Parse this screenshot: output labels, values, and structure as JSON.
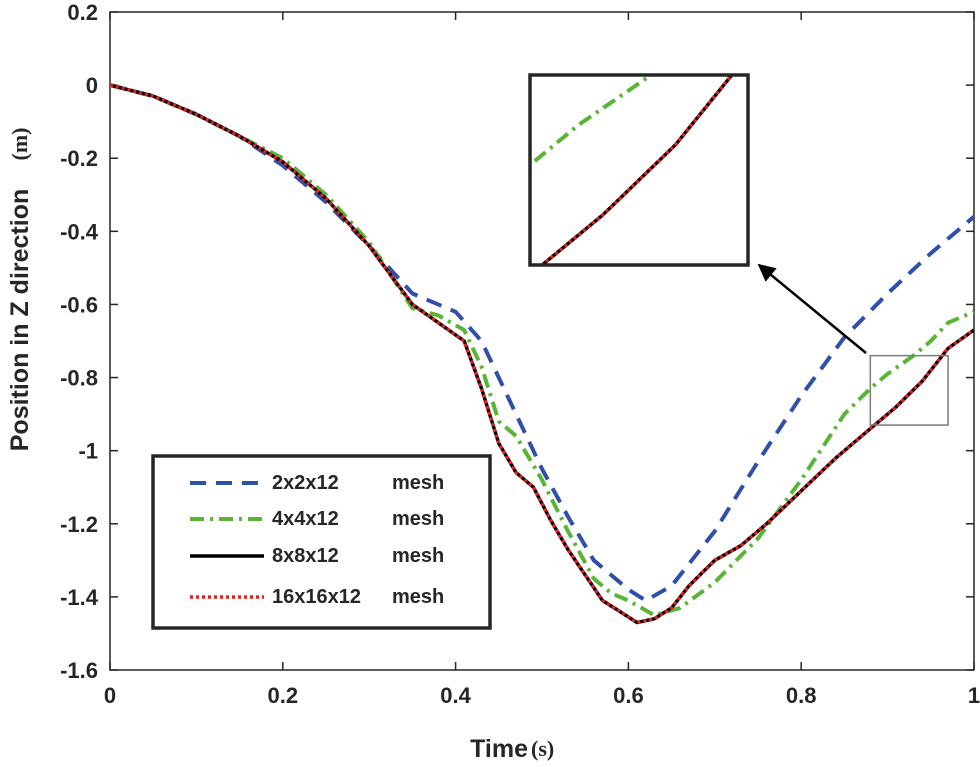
{
  "chart_data": {
    "type": "line",
    "xlabel": "Time",
    "xunit": "(s)",
    "ylabel": "Position in Z direction",
    "yunit": "(m)",
    "xlim": [
      0,
      1
    ],
    "ylim": [
      -1.6,
      0.2
    ],
    "xticks": [
      "0",
      "0.2",
      "0.4",
      "0.6",
      "0.8",
      "1"
    ],
    "yticks": [
      "0.2",
      "0",
      "-0.2",
      "-0.4",
      "-0.6",
      "-0.8",
      "-1",
      "-1.2",
      "-1.4",
      "-1.6"
    ],
    "series": [
      {
        "name": "2x2x12",
        "suffix": "mesh",
        "color": "#2f4fa8",
        "style": "dashed",
        "x": [
          0,
          0.05,
          0.1,
          0.15,
          0.2,
          0.25,
          0.3,
          0.35,
          0.4,
          0.43,
          0.46,
          0.5,
          0.53,
          0.56,
          0.6,
          0.62,
          0.65,
          0.7,
          0.75,
          0.8,
          0.85,
          0.9,
          0.95,
          1.0
        ],
        "y": [
          0,
          -0.03,
          -0.08,
          -0.14,
          -0.22,
          -0.32,
          -0.44,
          -0.57,
          -0.62,
          -0.7,
          -0.85,
          -1.05,
          -1.18,
          -1.3,
          -1.38,
          -1.41,
          -1.37,
          -1.22,
          -1.03,
          -0.85,
          -0.69,
          -0.57,
          -0.46,
          -0.36
        ]
      },
      {
        "name": "4x4x12",
        "suffix": "mesh",
        "color": "#5ab537",
        "style": "dashdot",
        "x": [
          0,
          0.05,
          0.1,
          0.15,
          0.2,
          0.25,
          0.3,
          0.35,
          0.38,
          0.41,
          0.43,
          0.45,
          0.47,
          0.5,
          0.53,
          0.56,
          0.58,
          0.6,
          0.63,
          0.66,
          0.7,
          0.75,
          0.8,
          0.85,
          0.88,
          0.9,
          0.93,
          0.95,
          0.97,
          1.0
        ],
        "y": [
          0,
          -0.03,
          -0.08,
          -0.14,
          -0.2,
          -0.3,
          -0.43,
          -0.61,
          -0.63,
          -0.67,
          -0.77,
          -0.92,
          -0.96,
          -1.08,
          -1.22,
          -1.35,
          -1.39,
          -1.41,
          -1.45,
          -1.43,
          -1.36,
          -1.24,
          -1.08,
          -0.9,
          -0.83,
          -0.79,
          -0.74,
          -0.7,
          -0.65,
          -0.62
        ]
      },
      {
        "name": "8x8x12",
        "suffix": "mesh",
        "color": "#000000",
        "style": "solid",
        "x": [
          0,
          0.05,
          0.1,
          0.15,
          0.2,
          0.25,
          0.3,
          0.35,
          0.38,
          0.41,
          0.43,
          0.45,
          0.47,
          0.49,
          0.51,
          0.53,
          0.55,
          0.57,
          0.59,
          0.61,
          0.63,
          0.65,
          0.67,
          0.7,
          0.73,
          0.76,
          0.8,
          0.84,
          0.88,
          0.91,
          0.94,
          0.97,
          1.0
        ],
        "y": [
          0,
          -0.03,
          -0.08,
          -0.14,
          -0.21,
          -0.31,
          -0.44,
          -0.6,
          -0.65,
          -0.7,
          -0.83,
          -0.98,
          -1.06,
          -1.1,
          -1.19,
          -1.27,
          -1.34,
          -1.41,
          -1.44,
          -1.47,
          -1.46,
          -1.43,
          -1.37,
          -1.3,
          -1.26,
          -1.2,
          -1.11,
          -1.02,
          -0.94,
          -0.88,
          -0.81,
          -0.72,
          -0.67
        ]
      },
      {
        "name": "16x16x12",
        "suffix": "mesh",
        "color": "#e62020",
        "style": "dotted",
        "x": [
          0,
          0.05,
          0.1,
          0.15,
          0.2,
          0.25,
          0.3,
          0.35,
          0.38,
          0.41,
          0.43,
          0.45,
          0.47,
          0.49,
          0.51,
          0.53,
          0.55,
          0.57,
          0.59,
          0.61,
          0.63,
          0.65,
          0.67,
          0.7,
          0.73,
          0.76,
          0.8,
          0.84,
          0.88,
          0.91,
          0.94,
          0.97,
          1.0
        ],
        "y": [
          0,
          -0.03,
          -0.08,
          -0.14,
          -0.21,
          -0.31,
          -0.44,
          -0.6,
          -0.65,
          -0.7,
          -0.83,
          -0.98,
          -1.06,
          -1.1,
          -1.19,
          -1.27,
          -1.34,
          -1.41,
          -1.44,
          -1.47,
          -1.46,
          -1.43,
          -1.37,
          -1.3,
          -1.26,
          -1.2,
          -1.11,
          -1.02,
          -0.94,
          -0.88,
          -0.81,
          -0.72,
          -0.67
        ]
      }
    ],
    "zoom_region": {
      "xlim": [
        0.88,
        0.97
      ],
      "ylim": [
        -0.93,
        -0.74
      ]
    },
    "legend_position": "bottom-left"
  }
}
